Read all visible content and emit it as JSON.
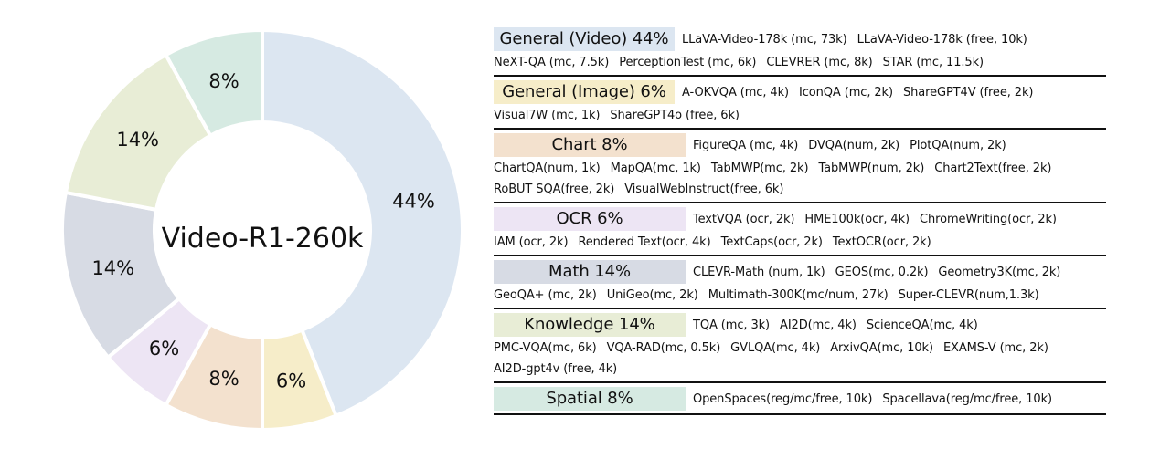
{
  "chart_data": {
    "type": "pie",
    "center_label": "Video-R1-260k",
    "slices": [
      {
        "label": "44%",
        "value": 44,
        "color": "#dce6f1"
      },
      {
        "label": "6%",
        "value": 6,
        "color": "#f6edc9"
      },
      {
        "label": "8%",
        "value": 8,
        "color": "#f3e1ce"
      },
      {
        "label": "6%",
        "value": 6,
        "color": "#ede5f4"
      },
      {
        "label": "14%",
        "value": 14,
        "color": "#d7dbe4"
      },
      {
        "label": "14%",
        "value": 14,
        "color": "#e8edd6"
      },
      {
        "label": "8%",
        "value": 8,
        "color": "#d6eae2"
      }
    ]
  },
  "legend": [
    {
      "title": "General (Video) 44%",
      "color": "#dce6f1",
      "lines": [
        [
          "LLaVA-Video-178k (mc, 73k)",
          "LLaVA-Video-178k (free, 10k)"
        ],
        [
          "NeXT-QA (mc, 7.5k)",
          "PerceptionTest (mc, 6k)",
          "CLEVRER (mc, 8k)",
          "STAR (mc, 11.5k)"
        ]
      ]
    },
    {
      "title": "General (Image) 6%",
      "color": "#f6edc9",
      "lines": [
        [
          "A-OKVQA (mc, 4k)",
          "IconQA (mc, 2k)",
          "ShareGPT4V (free, 2k)"
        ],
        [
          "Visual7W  (mc, 1k)",
          "ShareGPT4o (free, 6k)"
        ]
      ]
    },
    {
      "title": "Chart 8%",
      "color": "#f3e1ce",
      "lines": [
        [
          "FigureQA (mc, 4k)",
          "DVQA(num, 2k)",
          "PlotQA(num, 2k)"
        ],
        [
          "ChartQA(num, 1k)",
          "MapQA(mc, 1k)",
          "TabMWP(mc, 2k)",
          "TabMWP(num, 2k)",
          "Chart2Text(free, 2k)"
        ],
        [
          "RoBUT SQA(free, 2k)",
          "VisualWebInstruct(free, 6k)"
        ]
      ]
    },
    {
      "title": "OCR 6%",
      "color": "#ede5f4",
      "lines": [
        [
          "TextVQA (ocr, 2k)",
          "HME100k(ocr, 4k)",
          "ChromeWriting(ocr, 2k)"
        ],
        [
          "IAM (ocr, 2k)",
          "Rendered Text(ocr, 4k)",
          "TextCaps(ocr, 2k)",
          "TextOCR(ocr, 2k)"
        ]
      ]
    },
    {
      "title": "Math 14%",
      "color": "#d7dbe4",
      "lines": [
        [
          "CLEVR-Math (num, 1k)",
          "GEOS(mc, 0.2k)",
          "Geometry3K(mc, 2k)"
        ],
        [
          "GeoQA+ (mc, 2k)",
          "UniGeo(mc, 2k)",
          "Multimath-300K(mc/num, 27k)",
          "Super-CLEVR(num,1.3k)"
        ]
      ]
    },
    {
      "title": "Knowledge 14%",
      "color": "#e8edd6",
      "lines": [
        [
          "TQA (mc, 3k)",
          "AI2D(mc, 4k)",
          "ScienceQA(mc, 4k)"
        ],
        [
          "PMC-VQA(mc, 6k)",
          "VQA-RAD(mc, 0.5k)",
          "GVLQA(mc, 4k)",
          "ArxivQA(mc, 10k)",
          "EXAMS-V (mc, 2k)"
        ],
        [
          "AI2D-gpt4v (free, 4k)"
        ]
      ]
    },
    {
      "title": "Spatial 8%",
      "color": "#d6eae2",
      "lines": [
        [
          "OpenSpaces(reg/mc/free, 10k)",
          "Spacellava(reg/mc/free, 10k)"
        ]
      ]
    }
  ]
}
